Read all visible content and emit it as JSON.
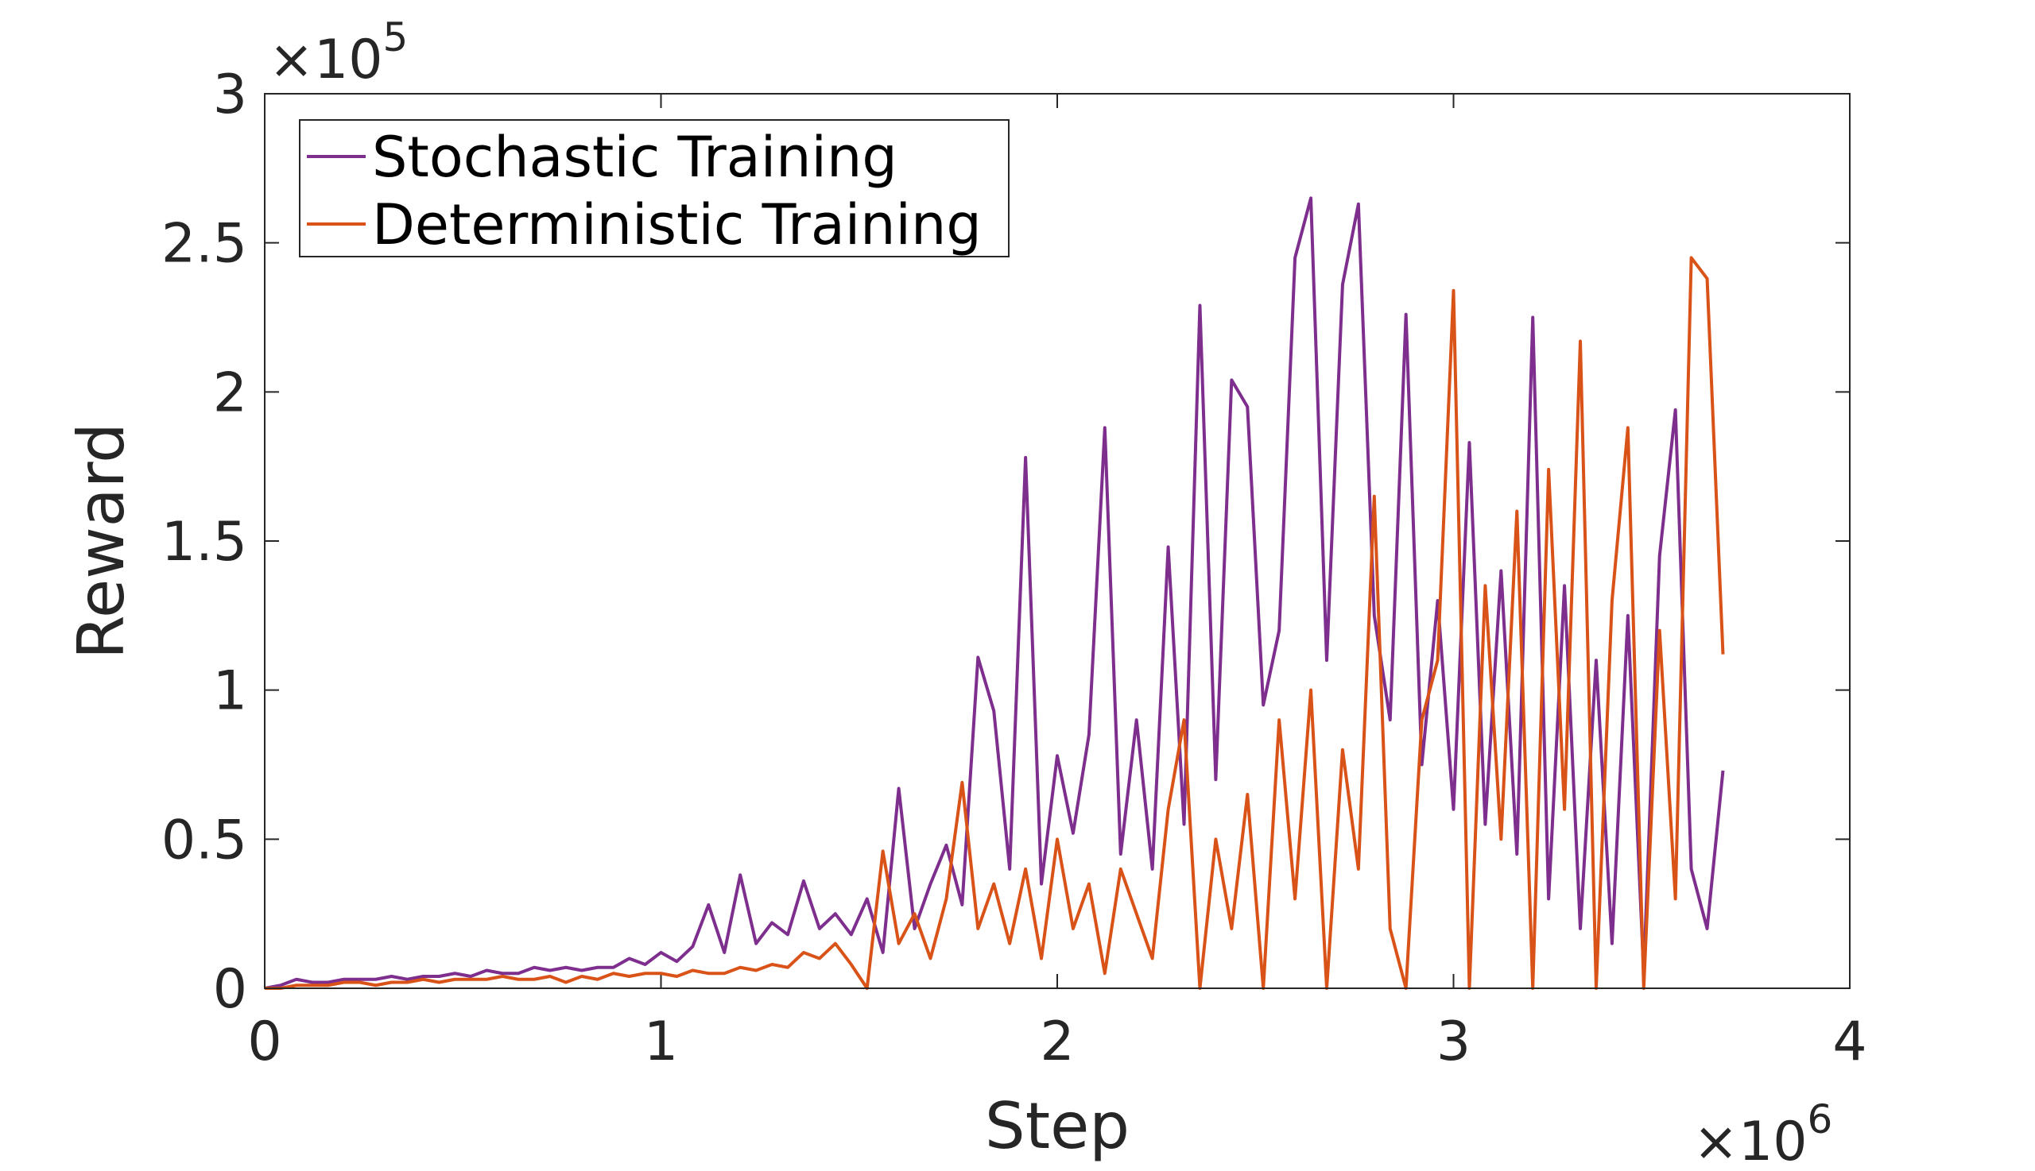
{
  "chart_data": {
    "type": "line",
    "xlabel": "Step",
    "ylabel": "Reward",
    "x_multiplier": {
      "base": "×10",
      "exponent": "6"
    },
    "y_multiplier": {
      "base": "×10",
      "exponent": "5"
    },
    "xlim": [
      0,
      4
    ],
    "xticks": [
      0,
      1,
      2,
      3,
      4
    ],
    "ylim": [
      0,
      3
    ],
    "yticks": [
      0,
      0.5,
      1,
      1.5,
      2,
      2.5,
      3
    ],
    "grid": false,
    "legend": "upper left",
    "x": [
      0,
      0.04,
      0.08,
      0.12,
      0.16,
      0.2,
      0.24,
      0.28,
      0.32,
      0.36,
      0.4,
      0.44,
      0.48,
      0.52,
      0.56,
      0.6,
      0.64,
      0.68,
      0.72,
      0.76,
      0.8,
      0.84,
      0.88,
      0.92,
      0.96,
      1,
      1.04,
      1.08,
      1.12,
      1.16,
      1.2,
      1.24,
      1.28,
      1.32,
      1.36,
      1.4,
      1.44,
      1.48,
      1.52,
      1.56,
      1.6,
      1.64,
      1.68,
      1.72,
      1.76,
      1.8,
      1.84,
      1.88,
      1.92,
      1.96,
      2,
      2.04,
      2.08,
      2.12,
      2.16,
      2.2,
      2.24,
      2.28,
      2.32,
      2.36,
      2.4,
      2.44,
      2.48,
      2.52,
      2.56,
      2.6,
      2.64,
      2.68,
      2.72,
      2.76,
      2.8,
      2.84,
      2.88,
      2.92,
      2.96,
      3,
      3.04,
      3.08,
      3.12,
      3.16,
      3.2,
      3.24,
      3.28,
      3.32,
      3.36,
      3.4,
      3.44,
      3.48,
      3.52,
      3.56,
      3.6,
      3.64,
      3.68
    ],
    "series": [
      {
        "name": "Stochastic Training",
        "color": "#7e2f8e",
        "values": [
          0,
          0.01,
          0.03,
          0.02,
          0.02,
          0.03,
          0.03,
          0.03,
          0.04,
          0.03,
          0.04,
          0.04,
          0.05,
          0.04,
          0.06,
          0.05,
          0.05,
          0.07,
          0.06,
          0.07,
          0.06,
          0.07,
          0.07,
          0.1,
          0.08,
          0.12,
          0.09,
          0.14,
          0.28,
          0.12,
          0.38,
          0.15,
          0.22,
          0.18,
          0.36,
          0.2,
          0.25,
          0.18,
          0.3,
          0.12,
          0.67,
          0.2,
          0.35,
          0.48,
          0.28,
          1.11,
          0.93,
          0.4,
          1.78,
          0.35,
          0.78,
          0.52,
          0.85,
          1.88,
          0.45,
          0.9,
          0.4,
          1.48,
          0.55,
          2.29,
          0.7,
          2.04,
          1.95,
          0.95,
          1.2,
          2.45,
          2.65,
          1.1,
          2.36,
          2.63,
          1.25,
          0.9,
          2.26,
          0.75,
          1.3,
          0.6,
          1.83,
          0.55,
          1.4,
          0.45,
          2.25,
          0.3,
          1.35,
          0.2,
          1.1,
          0.15,
          1.25,
          0.05,
          1.45,
          1.94,
          0.4,
          0.2,
          0.73
        ]
      },
      {
        "name": "Deterministic Training",
        "color": "#d95319",
        "values": [
          0,
          0,
          0.01,
          0.01,
          0.01,
          0.02,
          0.02,
          0.01,
          0.02,
          0.02,
          0.03,
          0.02,
          0.03,
          0.03,
          0.03,
          0.04,
          0.03,
          0.03,
          0.04,
          0.02,
          0.04,
          0.03,
          0.05,
          0.04,
          0.05,
          0.05,
          0.04,
          0.06,
          0.05,
          0.05,
          0.07,
          0.06,
          0.08,
          0.07,
          0.12,
          0.1,
          0.15,
          0.08,
          0,
          0.46,
          0.15,
          0.25,
          0.1,
          0.3,
          0.69,
          0.2,
          0.35,
          0.15,
          0.4,
          0.1,
          0.5,
          0.2,
          0.35,
          0.05,
          0.4,
          0.25,
          0.1,
          0.6,
          0.9,
          0,
          0.5,
          0.2,
          0.65,
          0,
          0.9,
          0.3,
          1,
          0,
          0.8,
          0.4,
          1.65,
          0.2,
          0,
          0.9,
          1.1,
          2.34,
          0,
          1.35,
          0.5,
          1.6,
          0,
          1.74,
          0.6,
          2.17,
          0,
          1.3,
          1.88,
          0,
          1.2,
          0.3,
          2.45,
          2.38,
          1.12
        ]
      }
    ]
  }
}
